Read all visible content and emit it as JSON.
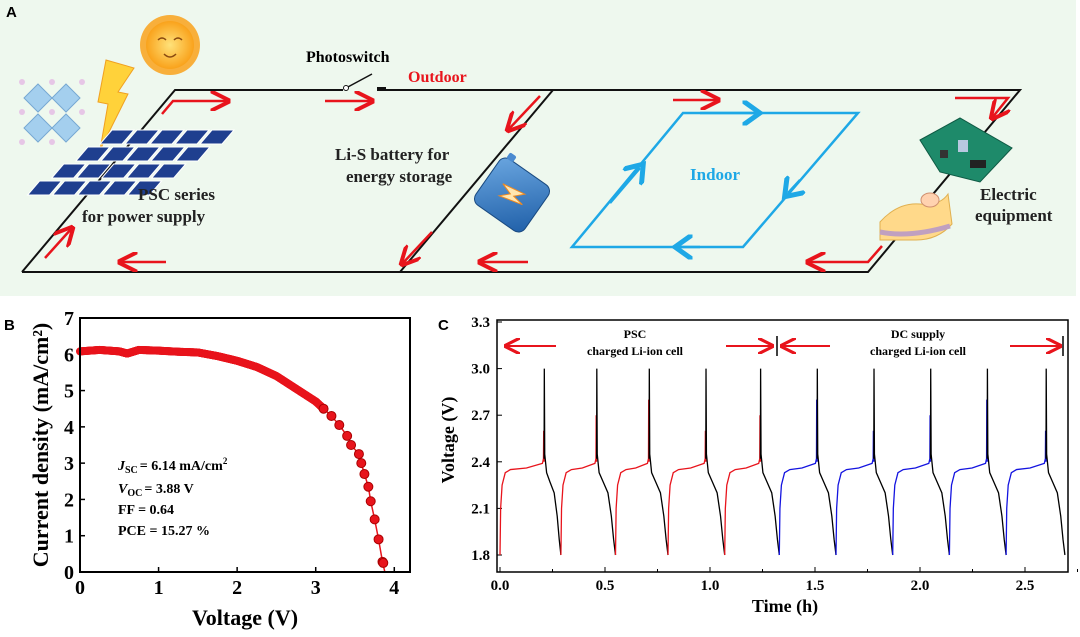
{
  "panel_a": {
    "label": "A",
    "photoswitch": "Photoswitch",
    "outdoor": "Outdoor",
    "indoor": "Indoor",
    "psc_line1": "PSC series",
    "psc_line2": "for power supply",
    "battery_line1": "Li-S battery for",
    "battery_line2": "energy storage",
    "equipment_line1": "Electric",
    "equipment_line2": "equipment",
    "colors": {
      "background": "#eef8ee",
      "arrow": "#e8141c",
      "indoor": "#1ea8e6",
      "wire": "#111111",
      "panel": "#1f3f8f"
    }
  },
  "chart_data": [
    {
      "panel_label": "B",
      "type": "scatter",
      "xlabel": "Voltage (V)",
      "ylabel": "Current density (mA/cm²)",
      "xlim": [
        0,
        4.2
      ],
      "ylim": [
        0,
        7
      ],
      "xticks": [
        "0",
        "1",
        "2",
        "3",
        "4"
      ],
      "yticks": [
        "0",
        "1",
        "2",
        "3",
        "4",
        "5",
        "6",
        "7"
      ],
      "color": "#e8141c",
      "points": [
        [
          0,
          6.08
        ],
        [
          0.25,
          6.12
        ],
        [
          0.5,
          6.08
        ],
        [
          0.6,
          6.02
        ],
        [
          0.75,
          6.12
        ],
        [
          1.0,
          6.1
        ],
        [
          1.25,
          6.07
        ],
        [
          1.5,
          6.05
        ],
        [
          1.75,
          5.95
        ],
        [
          2.0,
          5.82
        ],
        [
          2.25,
          5.65
        ],
        [
          2.5,
          5.4
        ],
        [
          2.75,
          5.05
        ],
        [
          3.0,
          4.7
        ],
        [
          3.1,
          4.5
        ],
        [
          3.2,
          4.3
        ],
        [
          3.3,
          4.05
        ],
        [
          3.4,
          3.75
        ],
        [
          3.45,
          3.5
        ],
        [
          3.55,
          3.25
        ],
        [
          3.58,
          3.0
        ],
        [
          3.62,
          2.7
        ],
        [
          3.67,
          2.35
        ],
        [
          3.7,
          1.95
        ],
        [
          3.75,
          1.45
        ],
        [
          3.8,
          0.9
        ],
        [
          3.85,
          0.28
        ],
        [
          3.88,
          0
        ]
      ],
      "annotations": {
        "jsc_sym": "J",
        "jsc_sub": "SC",
        "jsc_val": "= 6.14 mA/cm",
        "jsc_sup": "2",
        "voc_sym": "V",
        "voc_sub": "OC",
        "voc_val": "= 3.88 V",
        "ff": "FF = 0.64",
        "pce": "PCE = 15.27 %"
      }
    },
    {
      "panel_label": "C",
      "type": "line",
      "xlabel": "Time (h)",
      "ylabel": "Voltage (V)",
      "xlim": [
        0,
        2.72
      ],
      "ylim": [
        1.7,
        3.3
      ],
      "xticks": [
        "0.0",
        "0.5",
        "1.0",
        "1.5",
        "2.0",
        "2.5"
      ],
      "yticks": [
        "1.8",
        "2.1",
        "2.4",
        "2.7",
        "3.0",
        "3.3"
      ],
      "annotation_psc_1": "PSC",
      "annotation_psc_2": "charged Li-ion cell",
      "annotation_dc_1": "DC supply",
      "annotation_dc_2": "charged Li-ion cell",
      "colors": {
        "psc_charge": "#e8141c",
        "dc_charge": "#1414e0",
        "discharge": "#000000",
        "arrow": "#e8141c"
      },
      "voltage_range_V": [
        1.8,
        3.0
      ],
      "charge_plateau_V": [
        2.35,
        2.39
      ],
      "cycles": [
        {
          "source": "PSC",
          "charge_start": 0.0,
          "charge_end": 0.21,
          "discharge_end": 0.29
        },
        {
          "source": "PSC",
          "charge_start": 0.29,
          "charge_end": 0.46,
          "discharge_end": 0.55
        },
        {
          "source": "PSC",
          "charge_start": 0.55,
          "charge_end": 0.71,
          "discharge_end": 0.8
        },
        {
          "source": "PSC",
          "charge_start": 0.8,
          "charge_end": 0.98,
          "discharge_end": 1.07
        },
        {
          "source": "PSC",
          "charge_start": 1.07,
          "charge_end": 1.24,
          "discharge_end": 1.33
        },
        {
          "source": "DC",
          "charge_start": 1.33,
          "charge_end": 1.51,
          "discharge_end": 1.6
        },
        {
          "source": "DC",
          "charge_start": 1.6,
          "charge_end": 1.78,
          "discharge_end": 1.87
        },
        {
          "source": "DC",
          "charge_start": 1.87,
          "charge_end": 2.05,
          "discharge_end": 2.14
        },
        {
          "source": "DC",
          "charge_start": 2.14,
          "charge_end": 2.32,
          "discharge_end": 2.41
        },
        {
          "source": "DC",
          "charge_start": 2.41,
          "charge_end": 2.6,
          "discharge_end": 2.69
        }
      ]
    }
  ]
}
